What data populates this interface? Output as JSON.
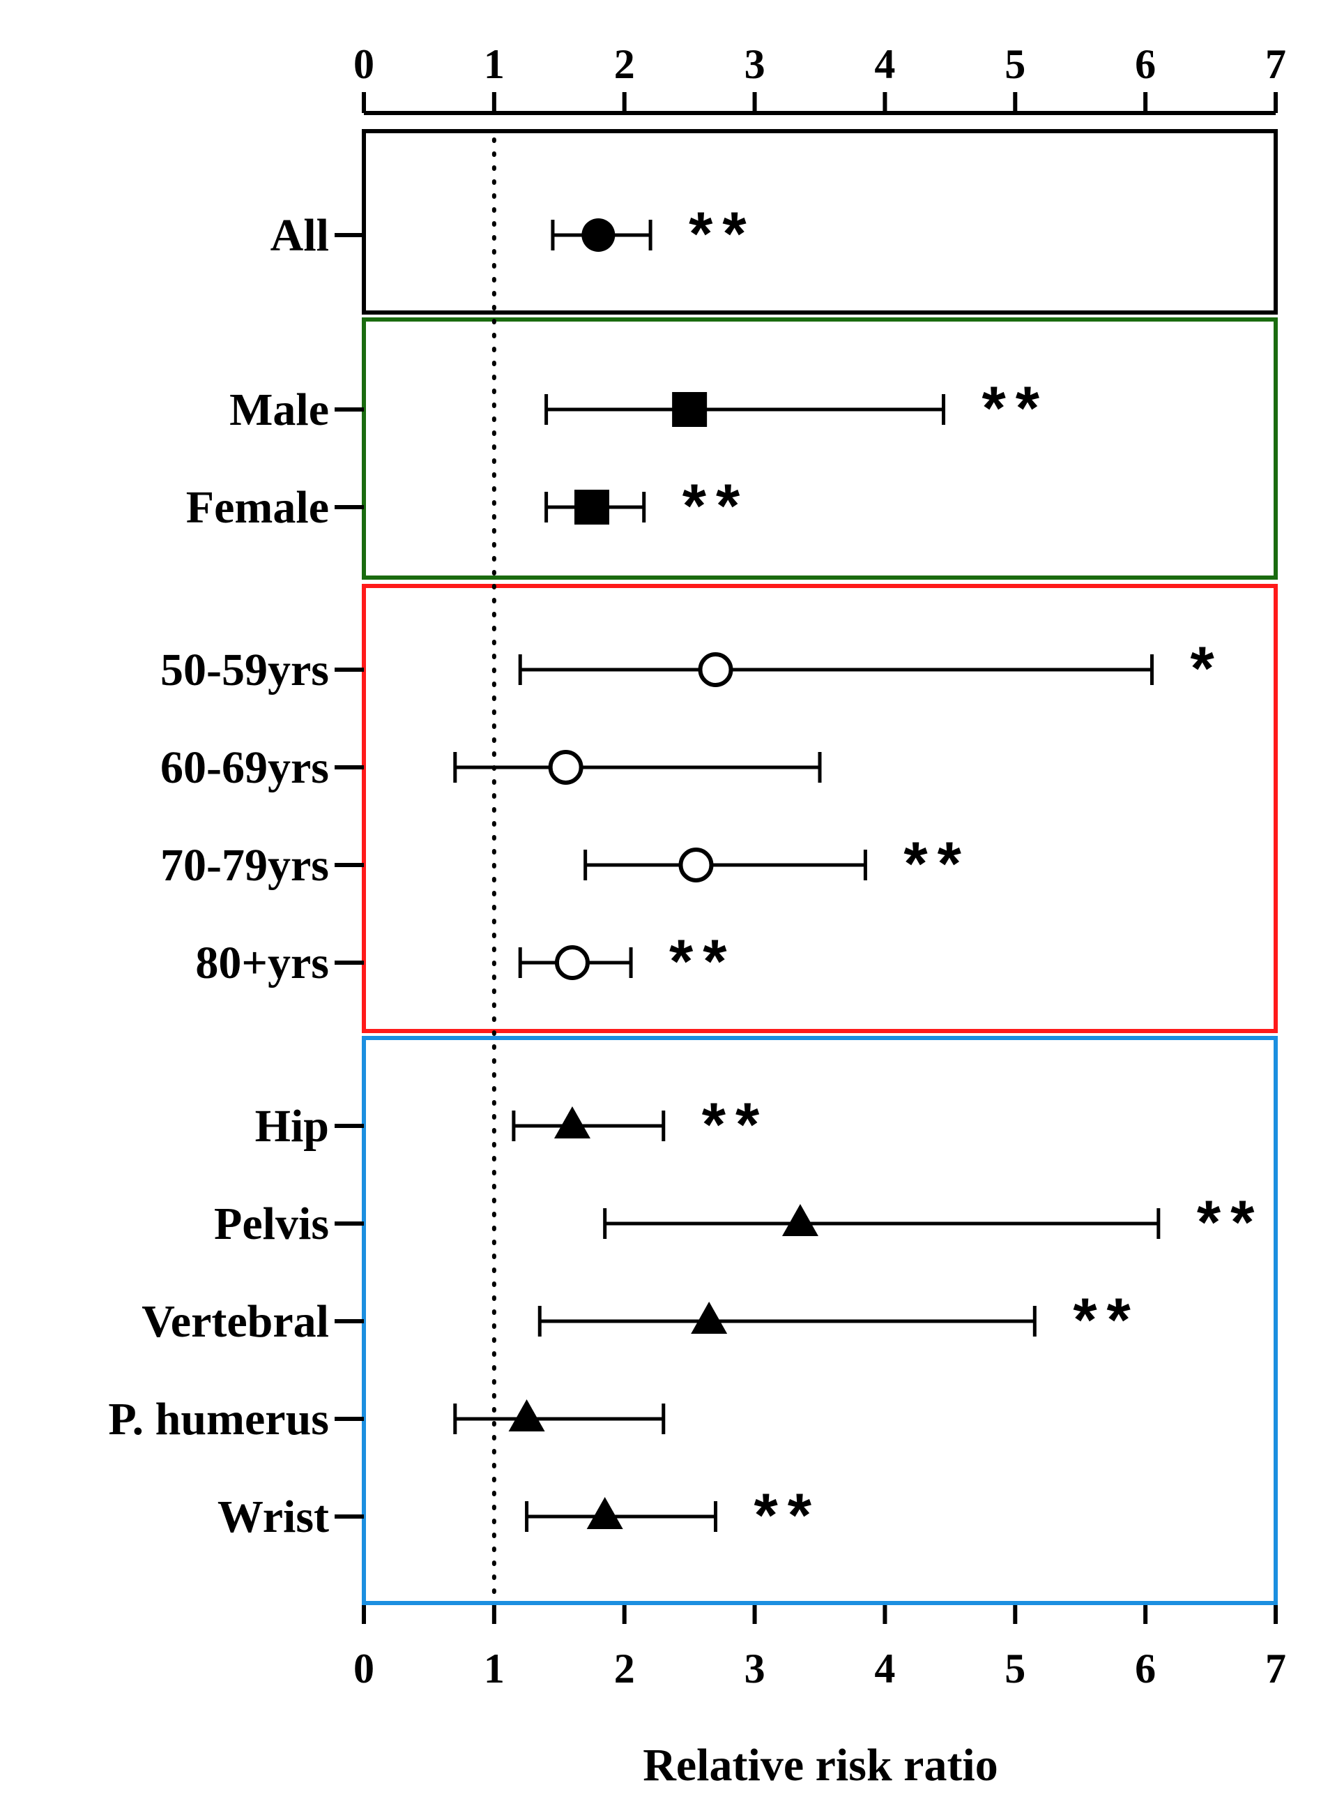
{
  "chart_data": {
    "type": "forest",
    "title": "",
    "xlabel": "Relative risk ratio",
    "xlim": [
      0,
      7
    ],
    "xticks": [
      0,
      1,
      2,
      3,
      4,
      5,
      6,
      7
    ],
    "reference_line": 1,
    "groups": [
      {
        "name": "overall",
        "color": "#000000",
        "marker": "filled-circle",
        "rows": [
          {
            "label": "All",
            "estimate": 1.8,
            "lower": 1.45,
            "upper": 2.2,
            "significance": "**"
          }
        ]
      },
      {
        "name": "sex",
        "color": "#1a6b0f",
        "marker": "filled-square",
        "rows": [
          {
            "label": "Male",
            "estimate": 2.5,
            "lower": 1.4,
            "upper": 4.45,
            "significance": "**"
          },
          {
            "label": "Female",
            "estimate": 1.75,
            "lower": 1.4,
            "upper": 2.15,
            "significance": "**"
          }
        ]
      },
      {
        "name": "age",
        "color": "#ff1a1a",
        "marker": "open-circle",
        "rows": [
          {
            "label": "50-59yrs",
            "estimate": 2.7,
            "lower": 1.2,
            "upper": 6.05,
            "significance": "*"
          },
          {
            "label": "60-69yrs",
            "estimate": 1.55,
            "lower": 0.7,
            "upper": 3.5,
            "significance": ""
          },
          {
            "label": "70-79yrs",
            "estimate": 2.55,
            "lower": 1.7,
            "upper": 3.85,
            "significance": "**"
          },
          {
            "label": "80+yrs",
            "estimate": 1.6,
            "lower": 1.2,
            "upper": 2.05,
            "significance": "**"
          }
        ]
      },
      {
        "name": "site",
        "color": "#1c8fe0",
        "marker": "filled-triangle",
        "rows": [
          {
            "label": "Hip",
            "estimate": 1.6,
            "lower": 1.15,
            "upper": 2.3,
            "significance": "**"
          },
          {
            "label": "Pelvis",
            "estimate": 3.35,
            "lower": 1.85,
            "upper": 6.1,
            "significance": "**"
          },
          {
            "label": "Vertebral",
            "estimate": 2.65,
            "lower": 1.35,
            "upper": 5.15,
            "significance": "**"
          },
          {
            "label": "P. humerus",
            "estimate": 1.25,
            "lower": 0.7,
            "upper": 2.3,
            "significance": ""
          },
          {
            "label": "Wrist",
            "estimate": 1.85,
            "lower": 1.25,
            "upper": 2.7,
            "significance": "**"
          }
        ]
      }
    ]
  }
}
